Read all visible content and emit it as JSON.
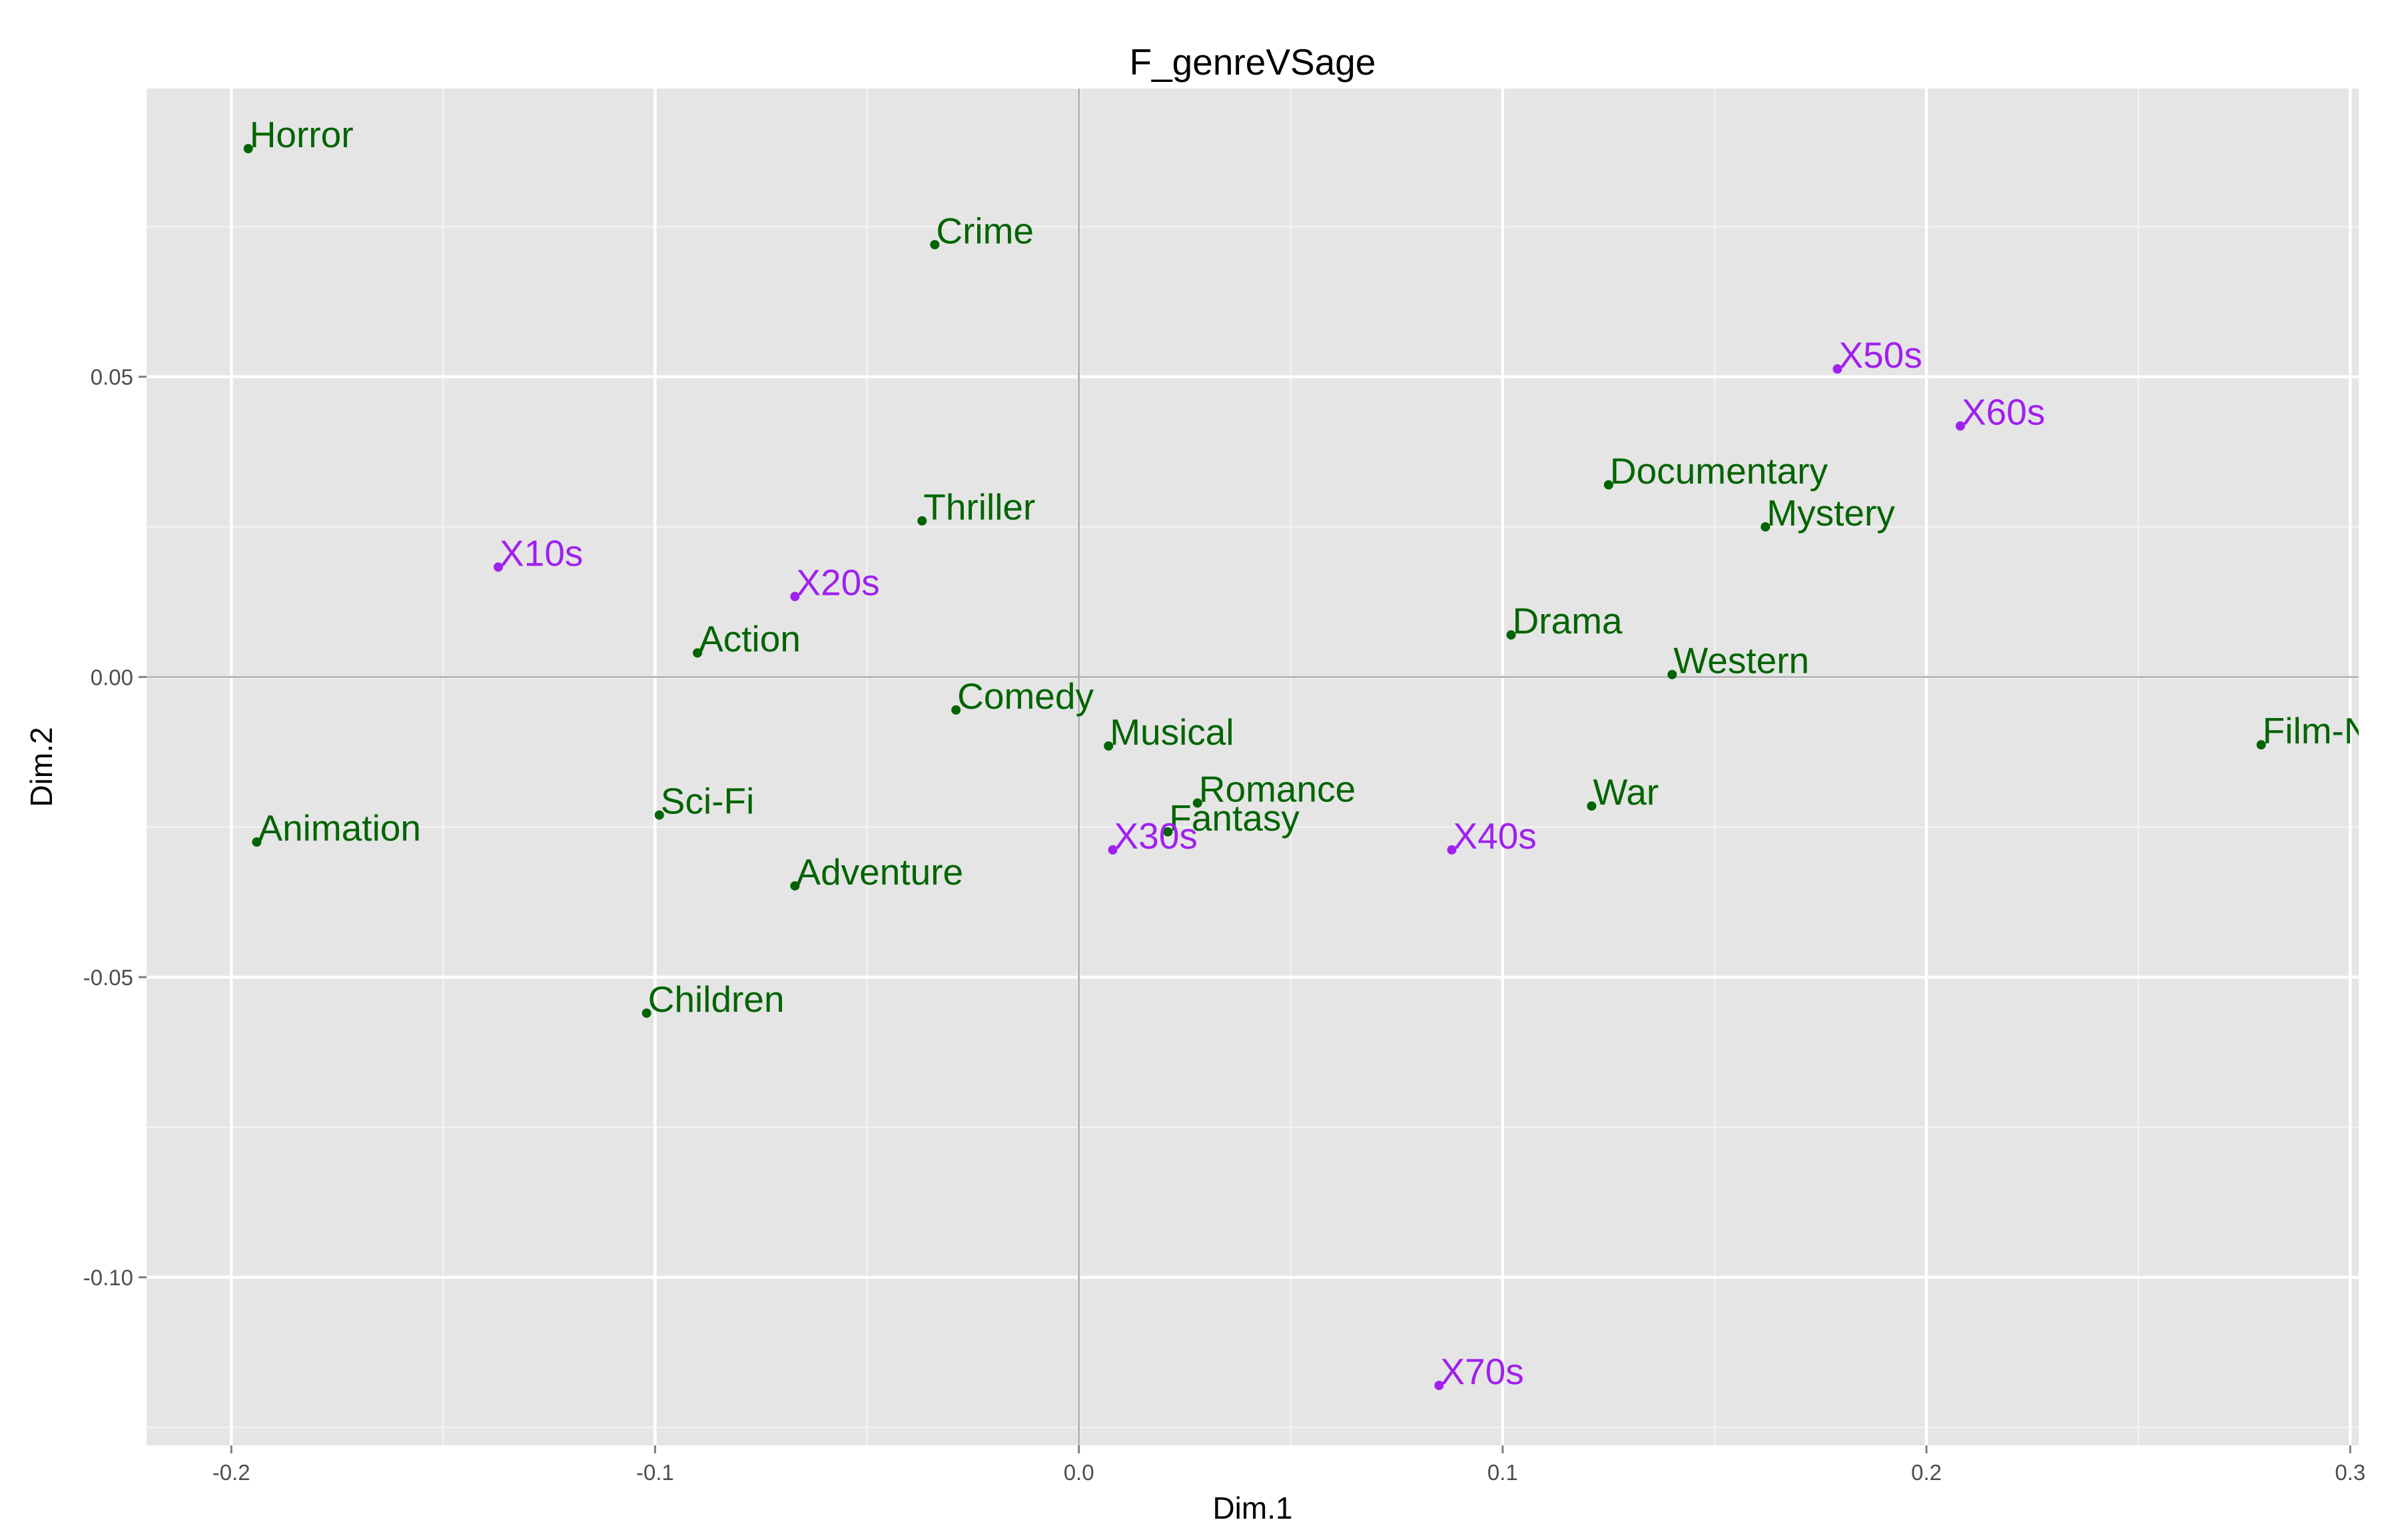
{
  "chart_data": {
    "type": "scatter",
    "title": "F_genreVSage",
    "xlabel": "Dim.1",
    "ylabel": "Dim.2",
    "xlim": [
      -0.22,
      0.302
    ],
    "ylim": [
      -0.128,
      0.098
    ],
    "x_ticks": [
      -0.2,
      -0.1,
      0.0,
      0.1,
      0.2,
      0.3
    ],
    "x_tick_labels": [
      "-0.2",
      "-0.1",
      "0.0",
      "0.1",
      "0.2",
      "0.3"
    ],
    "y_ticks": [
      0.05,
      0.0,
      -0.05,
      -0.1
    ],
    "y_tick_labels": [
      "0.05",
      "0.00",
      "-0.05",
      "-0.10"
    ],
    "grid": true,
    "reference_lines": {
      "x": 0,
      "y": 0
    },
    "colors": {
      "panel": "#e5e5e5",
      "grid_major": "#ffffff",
      "grid_minor": "#f2f2f2",
      "reference": "#b3b3b3",
      "genre": "#006400",
      "age": "#a020f0"
    },
    "series": [
      {
        "group": "genre",
        "color": "#006400",
        "points": [
          {
            "label": "Horror",
            "x": -0.196,
            "y": 0.088
          },
          {
            "label": "Crime",
            "x": -0.034,
            "y": 0.072
          },
          {
            "label": "Thriller",
            "x": -0.037,
            "y": 0.026
          },
          {
            "label": "Action",
            "x": -0.09,
            "y": 0.004
          },
          {
            "label": "Comedy",
            "x": -0.029,
            "y": -0.0055
          },
          {
            "label": "Musical",
            "x": 0.007,
            "y": -0.0115
          },
          {
            "label": "Sci-Fi",
            "x": -0.099,
            "y": -0.023
          },
          {
            "label": "Animation",
            "x": -0.194,
            "y": -0.0275
          },
          {
            "label": "Adventure",
            "x": -0.067,
            "y": -0.0348
          },
          {
            "label": "Children",
            "x": -0.102,
            "y": -0.056
          },
          {
            "label": "Romance",
            "x": 0.028,
            "y": -0.021
          },
          {
            "label": "Fantasy",
            "x": 0.021,
            "y": -0.0258
          },
          {
            "label": "Documentary",
            "x": 0.125,
            "y": 0.032
          },
          {
            "label": "Mystery",
            "x": 0.162,
            "y": 0.025
          },
          {
            "label": "Drama",
            "x": 0.102,
            "y": 0.007
          },
          {
            "label": "Western",
            "x": 0.14,
            "y": 0.0004
          },
          {
            "label": "War",
            "x": 0.121,
            "y": -0.0215
          },
          {
            "label": "Film-Noir",
            "x": 0.279,
            "y": -0.0113
          }
        ]
      },
      {
        "group": "age",
        "color": "#a020f0",
        "points": [
          {
            "label": "X10s",
            "x": -0.137,
            "y": 0.0183
          },
          {
            "label": "X20s",
            "x": -0.067,
            "y": 0.0134
          },
          {
            "label": "X30s",
            "x": 0.008,
            "y": -0.0288
          },
          {
            "label": "X40s",
            "x": 0.088,
            "y": -0.0288
          },
          {
            "label": "X50s",
            "x": 0.179,
            "y": 0.0513
          },
          {
            "label": "X60s",
            "x": 0.208,
            "y": 0.0418
          },
          {
            "label": "X70s",
            "x": 0.085,
            "y": -0.118
          }
        ]
      }
    ]
  }
}
